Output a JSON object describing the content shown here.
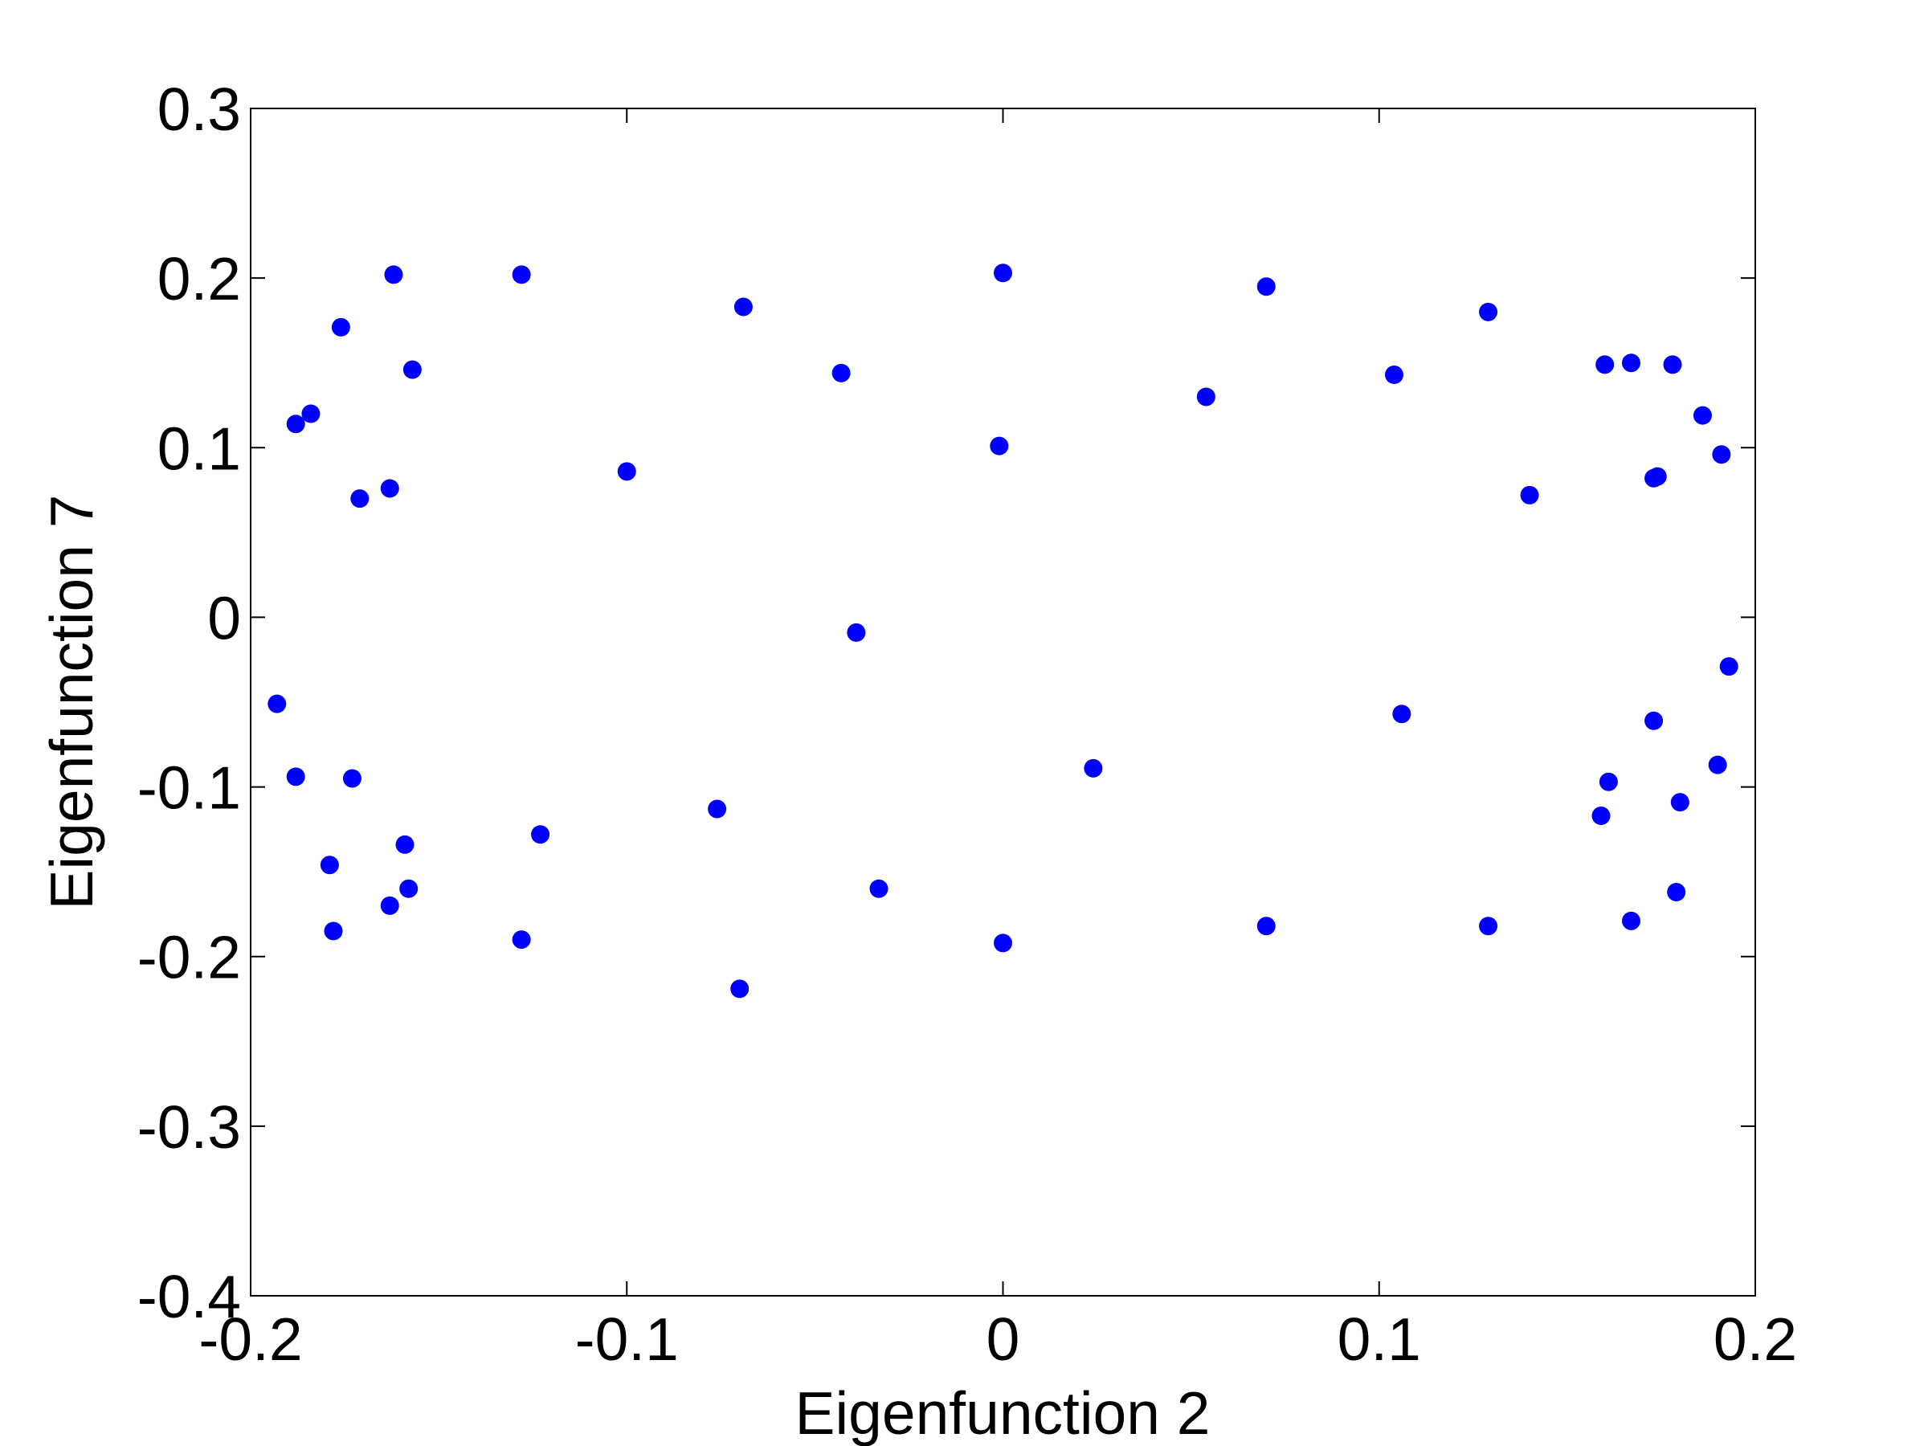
{
  "chart_data": {
    "type": "scatter",
    "title": "",
    "xlabel": "Eigenfunction 2",
    "ylabel": "Eigenfunction 7",
    "xlim": [
      -0.2,
      0.2
    ],
    "ylim": [
      -0.4,
      0.3
    ],
    "x_ticks": [
      -0.2,
      -0.1,
      0,
      0.1,
      0.2
    ],
    "x_tick_labels": [
      "-0.2",
      "-0.1",
      "0",
      "0.1",
      "0.2"
    ],
    "y_ticks": [
      -0.4,
      -0.3,
      -0.2,
      -0.1,
      0,
      0.1,
      0.2,
      0.3
    ],
    "y_tick_labels": [
      "-0.4",
      "-0.3",
      "-0.2",
      "-0.1",
      "0",
      "0.1",
      "0.2",
      "0.3"
    ],
    "grid": false,
    "marker_color": "#0000ff",
    "series": [
      {
        "points": [
          [
            -0.162,
            0.202
          ],
          [
            -0.128,
            0.202
          ],
          [
            -0.069,
            0.183
          ],
          [
            0.0,
            0.203
          ],
          [
            0.07,
            0.195
          ],
          [
            0.129,
            0.18
          ],
          [
            -0.176,
            0.171
          ],
          [
            -0.157,
            0.146
          ],
          [
            -0.043,
            0.144
          ],
          [
            0.104,
            0.143
          ],
          [
            0.054,
            0.13
          ],
          [
            0.16,
            0.149
          ],
          [
            0.167,
            0.15
          ],
          [
            0.178,
            0.149
          ],
          [
            -0.188,
            0.114
          ],
          [
            -0.184,
            0.12
          ],
          [
            -0.001,
            0.101
          ],
          [
            0.186,
            0.119
          ],
          [
            0.191,
            0.096
          ],
          [
            -0.1,
            0.086
          ],
          [
            -0.163,
            0.076
          ],
          [
            -0.171,
            0.07
          ],
          [
            0.14,
            0.072
          ],
          [
            0.173,
            0.082
          ],
          [
            0.174,
            0.083
          ],
          [
            -0.039,
            -0.009
          ],
          [
            -0.193,
            -0.051
          ],
          [
            0.106,
            -0.057
          ],
          [
            0.193,
            -0.029
          ],
          [
            0.173,
            -0.061
          ],
          [
            -0.188,
            -0.094
          ],
          [
            -0.173,
            -0.095
          ],
          [
            0.024,
            -0.089
          ],
          [
            0.19,
            -0.087
          ],
          [
            0.161,
            -0.097
          ],
          [
            0.159,
            -0.117
          ],
          [
            0.18,
            -0.109
          ],
          [
            -0.076,
            -0.113
          ],
          [
            -0.123,
            -0.128
          ],
          [
            -0.159,
            -0.134
          ],
          [
            -0.179,
            -0.146
          ],
          [
            -0.158,
            -0.16
          ],
          [
            -0.163,
            -0.17
          ],
          [
            -0.033,
            -0.16
          ],
          [
            0.179,
            -0.162
          ],
          [
            0.167,
            -0.179
          ],
          [
            -0.178,
            -0.185
          ],
          [
            -0.128,
            -0.19
          ],
          [
            0.0,
            -0.192
          ],
          [
            0.07,
            -0.182
          ],
          [
            0.129,
            -0.182
          ],
          [
            -0.07,
            -0.219
          ]
        ]
      }
    ]
  }
}
